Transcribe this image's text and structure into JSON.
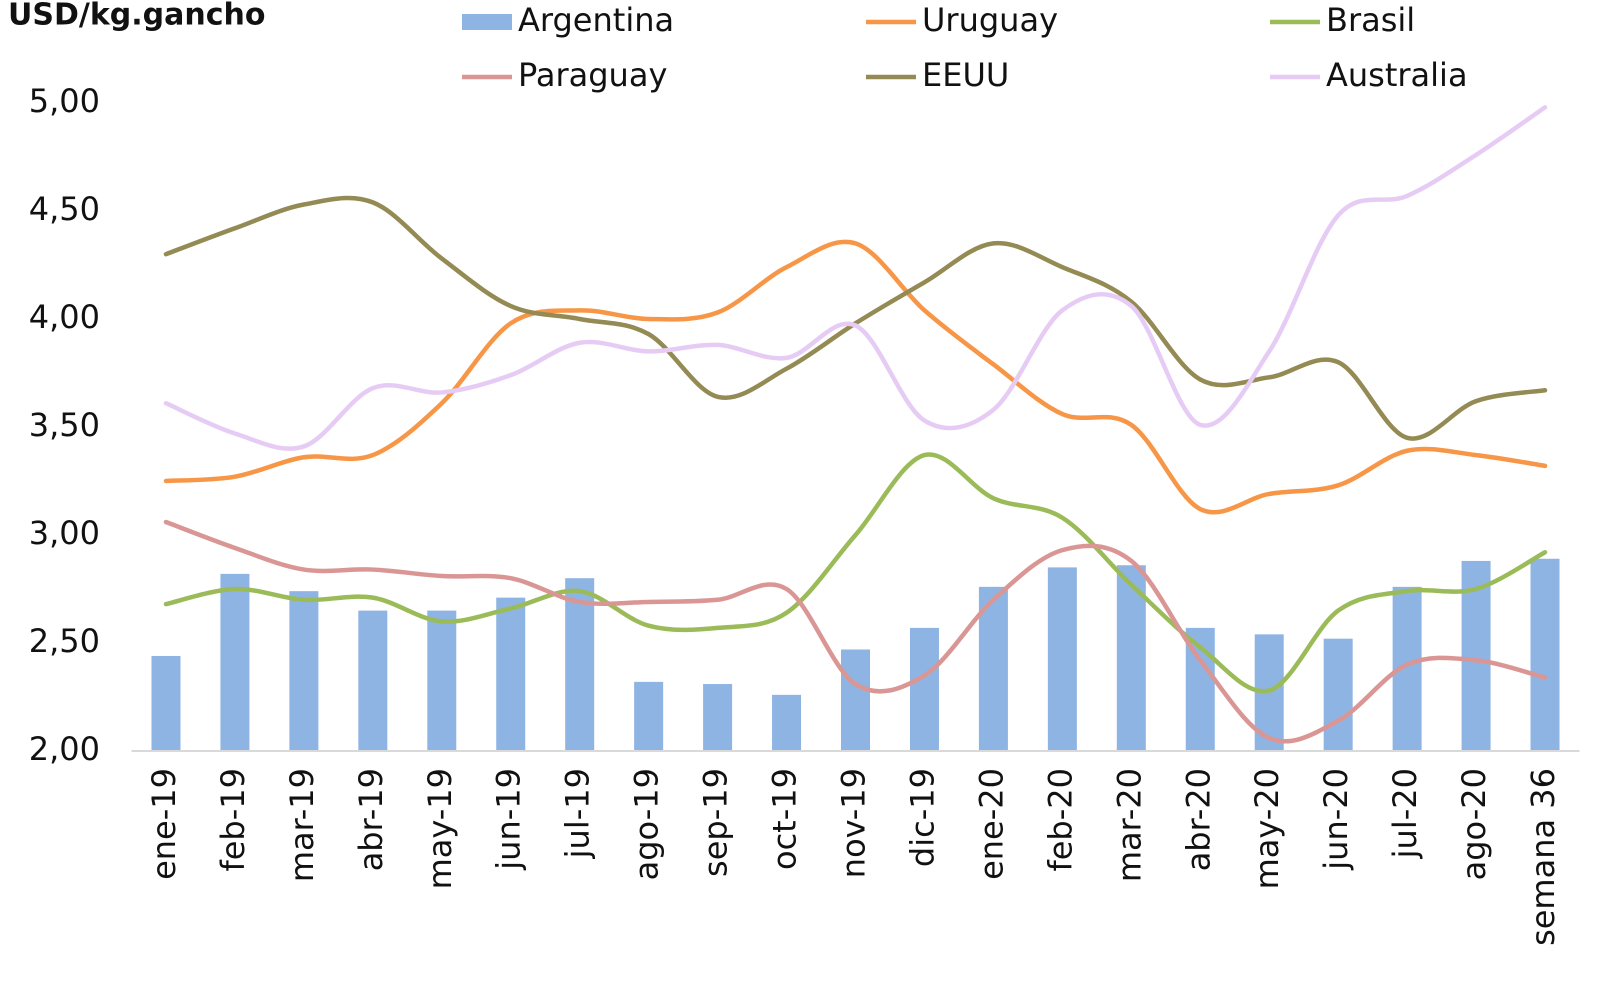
{
  "chart_data": {
    "type": "combo",
    "y_label": "USD/kg.gancho",
    "categories": [
      "ene-19",
      "feb-19",
      "mar-19",
      "abr-19",
      "may-19",
      "jun-19",
      "jul-19",
      "ago-19",
      "sep-19",
      "oct-19",
      "nov-19",
      "dic-19",
      "ene-20",
      "feb-20",
      "mar-20",
      "abr-20",
      "may-20",
      "jun-20",
      "jul-20",
      "ago-20",
      "semana 36"
    ],
    "series": [
      {
        "name": "Argentina",
        "type": "bar",
        "color": "#8eb4e3",
        "values": [
          2.44,
          2.82,
          2.74,
          2.65,
          2.65,
          2.71,
          2.8,
          2.32,
          2.31,
          2.26,
          2.47,
          2.57,
          2.76,
          2.85,
          2.86,
          2.57,
          2.54,
          2.52,
          2.76,
          2.88,
          2.89
        ]
      },
      {
        "name": "Uruguay",
        "type": "line",
        "color": "#f79646",
        "values": [
          3.25,
          3.27,
          3.36,
          3.37,
          3.61,
          3.98,
          4.04,
          4.0,
          4.03,
          4.24,
          4.35,
          4.04,
          3.79,
          3.56,
          3.51,
          3.12,
          3.19,
          3.23,
          3.39,
          3.37,
          3.32
        ]
      },
      {
        "name": "Brasil",
        "type": "line",
        "color": "#9bbb59",
        "values": [
          2.68,
          2.75,
          2.7,
          2.71,
          2.6,
          2.66,
          2.74,
          2.58,
          2.57,
          2.64,
          3.0,
          3.37,
          3.17,
          3.08,
          2.77,
          2.48,
          2.28,
          2.65,
          2.74,
          2.75,
          2.92
        ]
      },
      {
        "name": "Paraguay",
        "type": "line",
        "color": "#d99694",
        "values": [
          3.06,
          2.94,
          2.84,
          2.84,
          2.81,
          2.8,
          2.69,
          2.69,
          2.7,
          2.75,
          2.31,
          2.35,
          2.7,
          2.93,
          2.88,
          2.42,
          2.06,
          2.14,
          2.4,
          2.42,
          2.34
        ]
      },
      {
        "name": "EEUU",
        "type": "line",
        "color": "#948a54",
        "values": [
          4.3,
          4.42,
          4.53,
          4.54,
          4.28,
          4.06,
          4.0,
          3.93,
          3.64,
          3.77,
          3.98,
          4.17,
          4.35,
          4.24,
          4.08,
          3.72,
          3.73,
          3.8,
          3.45,
          3.62,
          3.67
        ]
      },
      {
        "name": "Australia",
        "type": "line",
        "color": "#e6ccf5",
        "values": [
          3.61,
          3.47,
          3.41,
          3.68,
          3.66,
          3.74,
          3.89,
          3.85,
          3.88,
          3.82,
          3.97,
          3.53,
          3.58,
          4.04,
          4.06,
          3.51,
          3.85,
          4.48,
          4.57,
          4.76,
          4.98
        ]
      }
    ],
    "ylim": [
      2,
      5
    ],
    "yticks": [
      {
        "value": 2,
        "label": "2,00"
      },
      {
        "value": 2.5,
        "label": "2,50"
      },
      {
        "value": 3,
        "label": "3,00"
      },
      {
        "value": 3.5,
        "label": "3,50"
      },
      {
        "value": 4,
        "label": "4,00"
      },
      {
        "value": 4.5,
        "label": "4,50"
      },
      {
        "value": 5,
        "label": "5,00"
      }
    ],
    "grid": false,
    "legend": "top"
  }
}
